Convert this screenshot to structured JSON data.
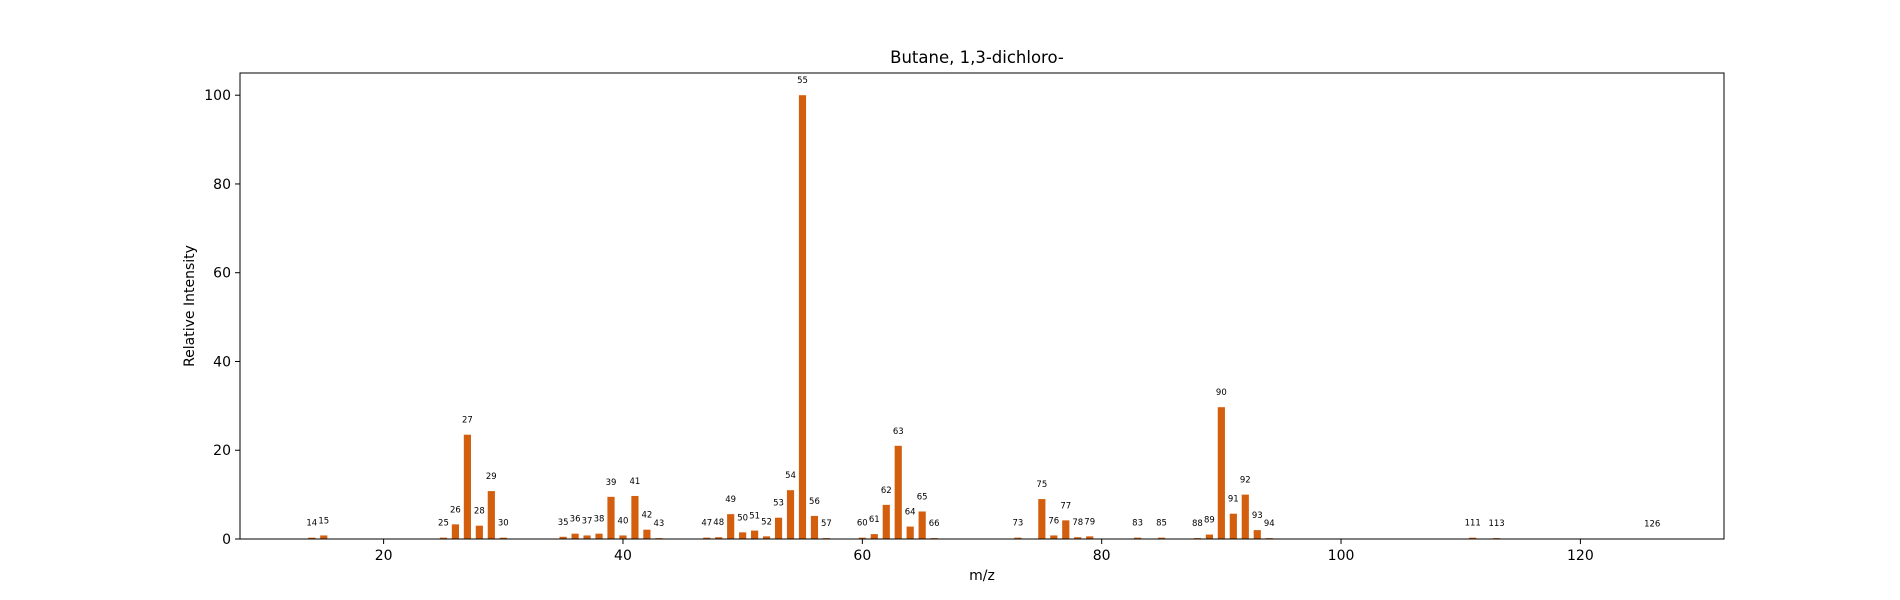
{
  "chart_data": {
    "type": "bar",
    "title": "Butane, 1,3-dichloro-",
    "xlabel": "m/z",
    "ylabel": "Relative Intensity",
    "xlim": [
      8,
      132
    ],
    "ylim": [
      0,
      105
    ],
    "xticks": [
      20,
      40,
      60,
      80,
      100,
      120
    ],
    "yticks": [
      0,
      20,
      40,
      60,
      80,
      100
    ],
    "grid": false,
    "bar_color": "#d35f0e",
    "x": [
      14,
      15,
      25,
      26,
      27,
      28,
      29,
      30,
      35,
      36,
      37,
      38,
      39,
      40,
      41,
      42,
      43,
      47,
      48,
      49,
      50,
      51,
      52,
      53,
      54,
      55,
      56,
      57,
      60,
      61,
      62,
      63,
      64,
      65,
      66,
      73,
      75,
      76,
      77,
      78,
      79,
      83,
      85,
      88,
      89,
      90,
      91,
      92,
      93,
      94,
      111,
      113,
      126
    ],
    "values": [
      0.3,
      0.8,
      0.3,
      3.3,
      23.5,
      3.0,
      10.8,
      0.3,
      0.5,
      1.2,
      0.8,
      1.2,
      9.5,
      0.8,
      9.7,
      2.1,
      0.2,
      0.3,
      0.4,
      5.6,
      1.5,
      1.9,
      0.6,
      4.8,
      11.0,
      100.0,
      5.2,
      0.2,
      0.3,
      1.1,
      7.7,
      21.0,
      2.8,
      6.2,
      0.2,
      0.3,
      9.0,
      0.8,
      4.2,
      0.4,
      0.6,
      0.3,
      0.3,
      0.2,
      1.0,
      29.7,
      5.7,
      10.0,
      2.0,
      0.2,
      0.3,
      0.2,
      0.1
    ]
  }
}
